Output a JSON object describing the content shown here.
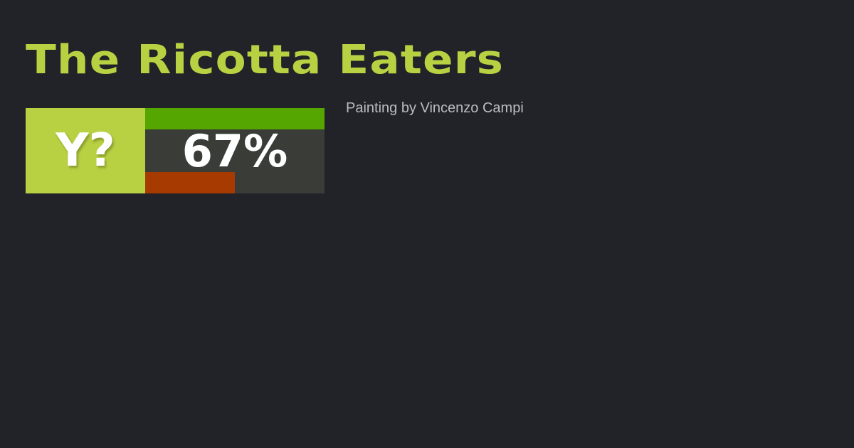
{
  "title": "The Ricotta Eaters",
  "badge": {
    "label": "Y?",
    "percent_label": "67%",
    "top_bar_fraction": 1.0,
    "bottom_bar_fraction": 0.5
  },
  "caption": "Painting by Vincenzo Campi",
  "colors": {
    "accent": "#b8d143",
    "background": "#212328",
    "green": "#55a600",
    "red": "#a63a00",
    "panel": "#393c37"
  }
}
